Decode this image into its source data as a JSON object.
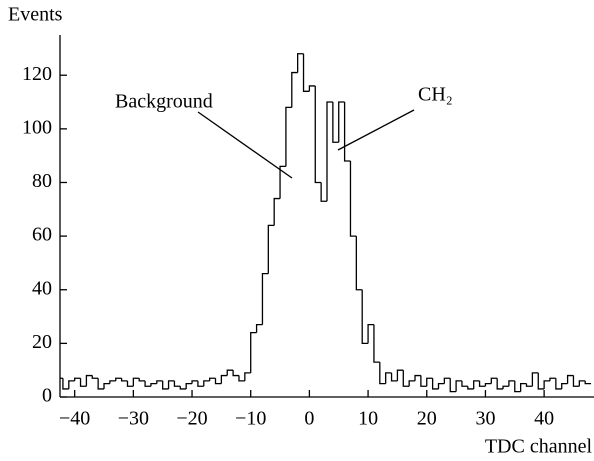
{
  "chart_data": {
    "type": "histogram",
    "y_label": "Events",
    "x_label": "TDC channel",
    "annotations": [
      "Background",
      "CH₂"
    ],
    "bins": [
      -43,
      -42,
      -41,
      -40,
      -39,
      -38,
      -37,
      -36,
      -35,
      -34,
      -33,
      -32,
      -31,
      -30,
      -29,
      -28,
      -27,
      -26,
      -25,
      -24,
      -23,
      -22,
      -21,
      -20,
      -19,
      -18,
      -17,
      -16,
      -15,
      -14,
      -13,
      -12,
      -11,
      -10,
      -9,
      -8,
      -7,
      -6,
      -5,
      -4,
      -3,
      -2,
      -1,
      0,
      1,
      2,
      3,
      4,
      5,
      6,
      7,
      8,
      9,
      10,
      11,
      12,
      13,
      14,
      15,
      16,
      17,
      18,
      19,
      20,
      21,
      22,
      23,
      24,
      25,
      26,
      27,
      28,
      29,
      30,
      31,
      32,
      33,
      34,
      35,
      36,
      37,
      38,
      39,
      40,
      41,
      42,
      43,
      44,
      45,
      46,
      47,
      48
    ],
    "values": [
      7,
      3,
      6,
      7,
      4,
      8,
      7,
      3,
      5,
      6,
      7,
      6,
      4,
      7,
      6,
      4,
      5,
      6,
      3,
      6,
      4,
      3,
      5,
      6,
      4,
      6,
      7,
      5,
      8,
      10,
      8,
      6,
      9,
      24,
      27,
      46,
      64,
      74,
      86,
      108,
      121,
      128,
      114,
      116,
      80,
      73,
      110,
      95,
      110,
      88,
      60,
      40,
      20,
      27,
      13,
      5,
      9,
      6,
      10,
      4,
      6,
      8,
      4,
      7,
      3,
      5,
      7,
      2,
      6,
      4,
      3,
      6,
      4,
      5,
      7,
      3,
      4,
      6,
      2,
      5,
      4,
      9,
      3,
      6,
      7,
      3,
      5,
      8,
      4,
      6,
      5
    ],
    "color": "#000000",
    "xlim": [
      -42.5,
      48.5
    ],
    "xticks": [
      {
        "value": -40,
        "label": "−40"
      },
      {
        "value": -30,
        "label": "−30"
      },
      {
        "value": -20,
        "label": "−20"
      },
      {
        "value": -10,
        "label": "−10"
      },
      0,
      10,
      20,
      30,
      40
    ],
    "ylim": [
      0,
      135
    ],
    "yticks": [
      0,
      20,
      40,
      60,
      80,
      100,
      120
    ]
  }
}
